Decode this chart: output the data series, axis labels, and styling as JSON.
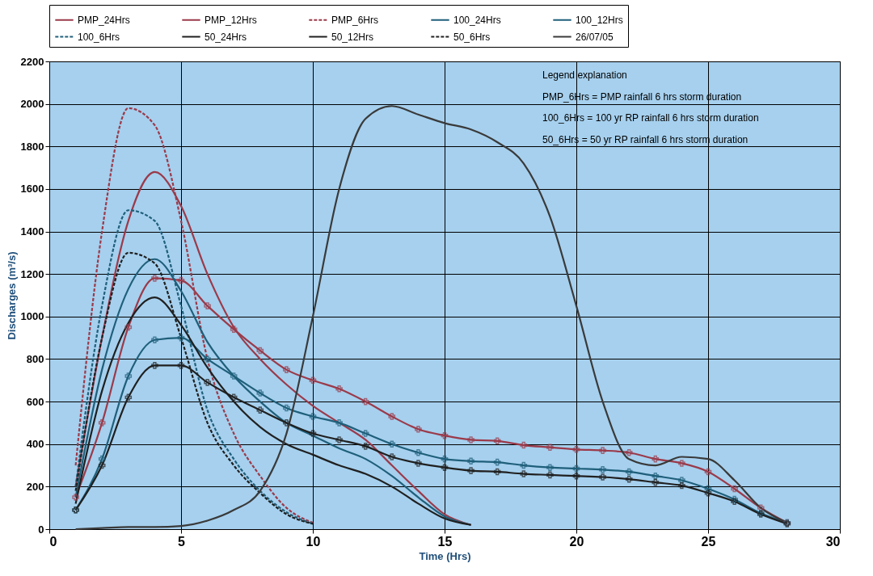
{
  "chart_data": {
    "type": "line",
    "xlabel": "Time (Hrs)",
    "ylabel": "Discharges (m³/s)",
    "xlim": [
      0,
      30
    ],
    "xticks": [
      0,
      5,
      10,
      15,
      20,
      25,
      30
    ],
    "ylim": [
      0,
      2200
    ],
    "yticks": [
      0,
      200,
      400,
      600,
      800,
      1000,
      1200,
      1400,
      1600,
      1800,
      2000,
      2200
    ],
    "grid": true,
    "legend": "top",
    "annotations": [
      "Legend explanation",
      "PMP_6Hrs = PMP rainfall 6 hrs storm duration",
      "100_6Hrs = 100 yr RP rainfall 6 hrs storm duration",
      "50_6Hrs = 50 yr RP rainfall 6 hrs storm duration"
    ],
    "x": [
      1,
      2,
      3,
      4,
      5,
      6,
      7,
      8,
      9,
      10,
      11,
      12,
      13,
      14,
      15,
      16,
      17,
      18,
      19,
      20,
      21,
      22,
      23,
      24,
      25,
      26,
      27,
      28
    ],
    "series": [
      {
        "name": "PMP_24Hrs",
        "color": "#9b3a4a",
        "marker": "cross",
        "line_style": "solid",
        "values": [
          150,
          500,
          950,
          1180,
          1170,
          1050,
          940,
          840,
          750,
          700,
          660,
          600,
          530,
          470,
          440,
          420,
          415,
          395,
          385,
          375,
          370,
          360,
          330,
          310,
          270,
          190,
          100,
          30
        ]
      },
      {
        "name": "PMP_12Hrs",
        "color": "#9b3a4a",
        "marker": "none",
        "line_style": "solid",
        "values": [
          200,
          900,
          1450,
          1680,
          1520,
          1200,
          950,
          800,
          680,
          580,
          500,
          420,
          300,
          180,
          70,
          20,
          null,
          null,
          null,
          null,
          null,
          null,
          null,
          null,
          null,
          null,
          null,
          null
        ]
      },
      {
        "name": "PMP_6Hrs",
        "color": "#9b3a4a",
        "marker": "none",
        "line_style": "dashed",
        "values": [
          300,
          1400,
          1980,
          1900,
          1450,
          800,
          450,
          250,
          100,
          30,
          null,
          null,
          null,
          null,
          null,
          null,
          null,
          null,
          null,
          null,
          null,
          null,
          null,
          null,
          null,
          null,
          null,
          null
        ]
      },
      {
        "name": "100_24Hrs",
        "color": "#1f5f7a",
        "marker": "cross",
        "line_style": "solid",
        "values": [
          90,
          330,
          720,
          890,
          900,
          800,
          720,
          640,
          570,
          530,
          500,
          450,
          400,
          360,
          330,
          320,
          315,
          300,
          290,
          285,
          280,
          270,
          250,
          230,
          190,
          140,
          75,
          30
        ]
      },
      {
        "name": "100_12Hrs",
        "color": "#1f5f7a",
        "marker": "none",
        "line_style": "solid",
        "values": [
          150,
          750,
          1130,
          1270,
          1120,
          880,
          720,
          600,
          500,
          440,
          380,
          330,
          250,
          150,
          60,
          20,
          null,
          null,
          null,
          null,
          null,
          null,
          null,
          null,
          null,
          null,
          null,
          null
        ]
      },
      {
        "name": "100_6Hrs",
        "color": "#1f5f7a",
        "marker": "none",
        "line_style": "dashed",
        "values": [
          200,
          1050,
          1500,
          1450,
          1050,
          560,
          330,
          180,
          80,
          25,
          null,
          null,
          null,
          null,
          null,
          null,
          null,
          null,
          null,
          null,
          null,
          null,
          null,
          null,
          null,
          null,
          null,
          null
        ]
      },
      {
        "name": "50_24Hrs",
        "color": "#202020",
        "marker": "cross",
        "line_style": "solid",
        "values": [
          90,
          300,
          620,
          770,
          770,
          690,
          620,
          560,
          500,
          450,
          420,
          390,
          340,
          310,
          290,
          275,
          270,
          260,
          255,
          250,
          245,
          235,
          220,
          205,
          170,
          130,
          70,
          25
        ]
      },
      {
        "name": "50_12Hrs",
        "color": "#202020",
        "marker": "none",
        "line_style": "solid",
        "values": [
          120,
          650,
          970,
          1090,
          960,
          760,
          600,
          480,
          400,
          350,
          300,
          260,
          200,
          120,
          50,
          20,
          null,
          null,
          null,
          null,
          null,
          null,
          null,
          null,
          null,
          null,
          null,
          null
        ]
      },
      {
        "name": "50_6Hrs",
        "color": "#202020",
        "marker": "none",
        "line_style": "dashed",
        "values": [
          180,
          900,
          1300,
          1250,
          900,
          500,
          300,
          170,
          70,
          25,
          null,
          null,
          null,
          null,
          null,
          null,
          null,
          null,
          null,
          null,
          null,
          null,
          null,
          null,
          null,
          null,
          null,
          null
        ]
      },
      {
        "name": "26/07/05",
        "color": "#3a3a3a",
        "marker": "none",
        "line_style": "solid",
        "values": [
          0,
          5,
          10,
          10,
          15,
          40,
          90,
          180,
          450,
          1000,
          1600,
          1930,
          1990,
          1950,
          1910,
          1880,
          1820,
          1720,
          1470,
          1050,
          600,
          330,
          300,
          340,
          330,
          230,
          100,
          30
        ]
      }
    ]
  }
}
